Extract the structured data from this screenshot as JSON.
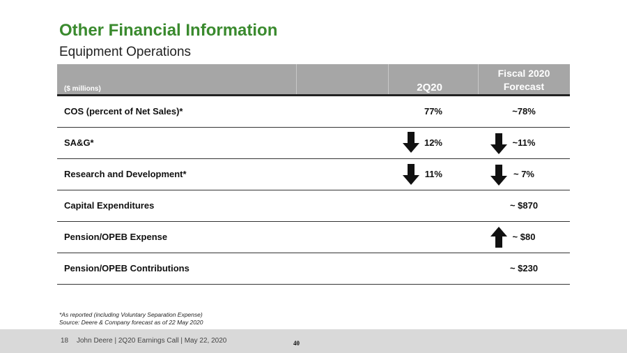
{
  "header": {
    "title": "Other Financial Information",
    "subtitle": "Equipment Operations"
  },
  "table": {
    "columns": [
      "($ millions)",
      "2Q20",
      "Fiscal 2020 Forecast"
    ],
    "rows": [
      {
        "label": "COS (percent of Net Sales)*",
        "q2": "77%",
        "forecast": "~78%"
      },
      {
        "label": "SA&G*",
        "q2": "12%",
        "forecast": "~11%"
      },
      {
        "label": "Research and Development*",
        "q2": "11%",
        "forecast": "~ 7%"
      },
      {
        "label": "Capital Expenditures",
        "forecast": "~ $870"
      },
      {
        "label": "Pension/OPEB Expense",
        "forecast": "~ $80"
      },
      {
        "label": "Pension/OPEB Contributions",
        "forecast": "~ $230"
      }
    ]
  },
  "footnotes": [
    "*As reported (including Voluntary Separation Expense)",
    "Source: Deere & Company forecast as of 22 May 2020"
  ],
  "footer": {
    "page": "18",
    "text": "John Deere | 2Q20 Earnings Call | May 22, 2020",
    "number": "40"
  }
}
